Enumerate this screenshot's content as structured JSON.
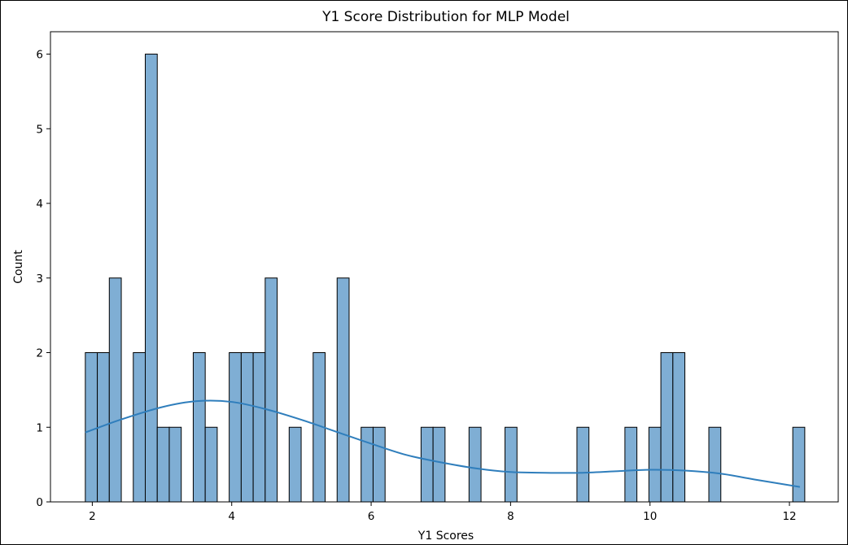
{
  "chart_data": {
    "type": "bar",
    "subtype": "histogram-with-kde",
    "title": "Y1 Score Distribution for MLP Model",
    "xlabel": "Y1 Scores",
    "ylabel": "Count",
    "xlim": [
      1.4,
      12.7
    ],
    "ylim": [
      0,
      6.3
    ],
    "xticks": [
      2,
      4,
      6,
      8,
      10,
      12
    ],
    "yticks": [
      0,
      1,
      2,
      3,
      4,
      5,
      6
    ],
    "grid": false,
    "bin_start": 1.9,
    "bin_width": 0.172,
    "counts": [
      2,
      2,
      3,
      0,
      2,
      6,
      1,
      1,
      0,
      2,
      1,
      0,
      2,
      2,
      2,
      3,
      0,
      1,
      0,
      2,
      0,
      3,
      0,
      1,
      1,
      0,
      0,
      0,
      1,
      1,
      0,
      0,
      1,
      0,
      0,
      1,
      0,
      0,
      0,
      0,
      0,
      1,
      0,
      0,
      0,
      1,
      0,
      1,
      2,
      2,
      0,
      0,
      1,
      0,
      0,
      0,
      0,
      0,
      0,
      1
    ],
    "kde": {
      "x": [
        1.9,
        2.4,
        3.0,
        3.5,
        4.0,
        4.5,
        5.0,
        5.5,
        6.0,
        6.5,
        7.0,
        7.5,
        8.0,
        8.5,
        9.0,
        9.5,
        10.0,
        10.5,
        11.0,
        11.5,
        12.15
      ],
      "y": [
        0.93,
        1.1,
        1.27,
        1.35,
        1.34,
        1.24,
        1.1,
        0.94,
        0.78,
        0.63,
        0.53,
        0.45,
        0.4,
        0.39,
        0.39,
        0.41,
        0.43,
        0.42,
        0.38,
        0.3,
        0.2
      ]
    },
    "colors": {
      "bar_fill": "#7faed4",
      "bar_edge": "#000000",
      "kde_line": "#2f7ebc"
    }
  }
}
